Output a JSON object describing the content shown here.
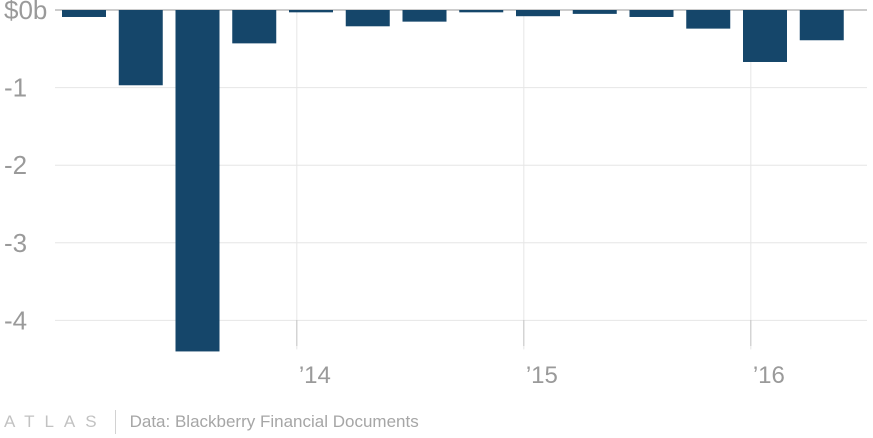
{
  "chart_data": {
    "type": "bar",
    "series": [
      {
        "values": [
          -0.09,
          -0.97,
          -4.4,
          -0.43,
          -0.03,
          -0.21,
          -0.15,
          -0.03,
          -0.08,
          -0.05,
          -0.09,
          -0.24,
          -0.67,
          -0.39
        ]
      }
    ],
    "y_ticks": [
      {
        "value": 0,
        "label": "$0b"
      },
      {
        "value": -1,
        "label": "-1"
      },
      {
        "value": -2,
        "label": "-2"
      },
      {
        "value": -3,
        "label": "-3"
      },
      {
        "value": -4,
        "label": "-4"
      }
    ],
    "x_ticks": [
      {
        "position": 3.75,
        "label": "’14"
      },
      {
        "position": 7.75,
        "label": "’15"
      },
      {
        "position": 11.75,
        "label": "’16"
      }
    ],
    "ylim": [
      -4.45,
      0
    ],
    "grid": true,
    "bar_color": "#15466a"
  },
  "footer": {
    "brand": "ATLAS",
    "source": "Data: Blackberry Financial Documents"
  }
}
